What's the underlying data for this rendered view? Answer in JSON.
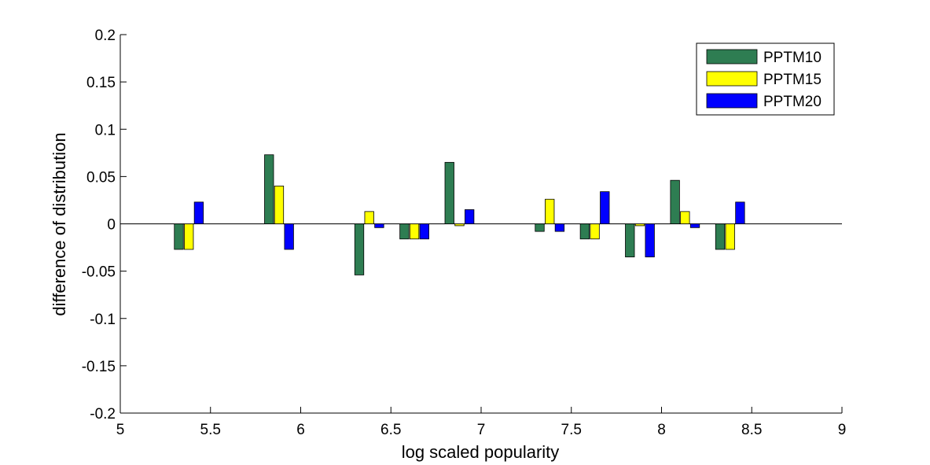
{
  "chart_data": {
    "type": "bar",
    "title": "",
    "xlabel": "log scaled popularity",
    "ylabel": "difference of distribution",
    "xlim": [
      5,
      9
    ],
    "ylim": [
      -0.2,
      0.2
    ],
    "xticks": [
      "5",
      "5.5",
      "6",
      "6.5",
      "7",
      "7.5",
      "8",
      "8.5",
      "9"
    ],
    "yticks": [
      "0.2",
      "0.15",
      "0.1",
      "0.05",
      "0",
      "-0.05",
      "-0.1",
      "-0.15",
      "-0.2"
    ],
    "grid": false,
    "legend_position": "top-right",
    "x": [
      5.38,
      5.88,
      6.38,
      6.63,
      6.88,
      7.38,
      7.63,
      7.88,
      8.13,
      8.38
    ],
    "series": [
      {
        "name": "PPTM10",
        "color": "#2e7d52",
        "values": [
          -0.027,
          0.073,
          -0.054,
          -0.016,
          0.065,
          -0.008,
          -0.016,
          -0.035,
          0.046,
          -0.027
        ]
      },
      {
        "name": "PPTM15",
        "color": "#ffff00",
        "values": [
          -0.027,
          0.04,
          0.013,
          -0.016,
          -0.002,
          0.026,
          -0.016,
          -0.002,
          0.013,
          -0.027
        ]
      },
      {
        "name": "PPTM20",
        "color": "#0000ff",
        "values": [
          0.023,
          -0.027,
          -0.004,
          -0.016,
          0.015,
          -0.008,
          0.034,
          -0.035,
          -0.004,
          0.023
        ]
      }
    ]
  }
}
